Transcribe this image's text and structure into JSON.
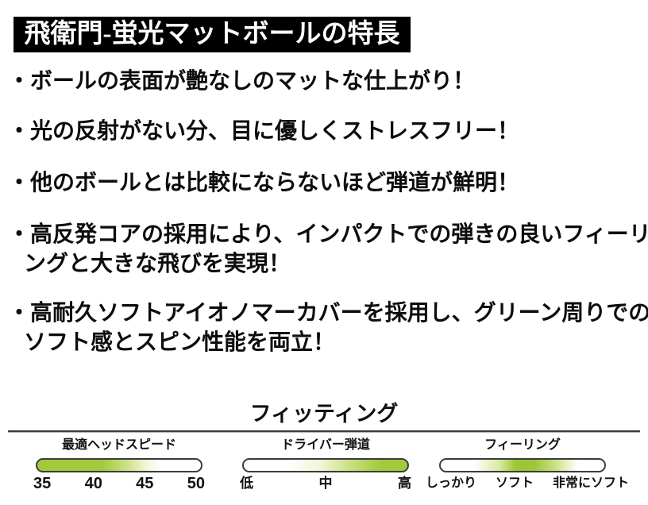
{
  "banner": {
    "title": "飛衛門-蛍光マットボールの特長"
  },
  "bullets": [
    "・ボールの表面が艶なしのマットな仕上がり！",
    "・光の反射がない分、目に優しくストレスフリー！",
    "・他のボールとは比較にならないほど弾道が鮮明！",
    "・高反発コアの採用により、インパクトでの弾きの良いフィーリ\nングと大きな飛びを実現！",
    "・高耐久ソフトアイオノマーカバーを採用し、グリーン周りでの\nソフト感とスピン性能を両立！"
  ],
  "fitting": {
    "title": "フィッティング",
    "gauges": [
      {
        "label": "最適ヘッドスピード",
        "highlight": "low-range",
        "ticks": [
          "35",
          "40",
          "45",
          "50"
        ]
      },
      {
        "label": "ドライバー弾道",
        "highlight": "high-range",
        "ticks": [
          "低",
          "中",
          "高"
        ]
      },
      {
        "label": "フィーリング",
        "highlight": "middle-range",
        "ticks": [
          "しっかり",
          "ソフト",
          "非常にソフト"
        ]
      }
    ],
    "colors": {
      "gauge_green": "#a3ca3c",
      "gauge_outline": "#3c3c3c",
      "banner_bg": "#000000",
      "banner_text": "#ffffff"
    }
  }
}
